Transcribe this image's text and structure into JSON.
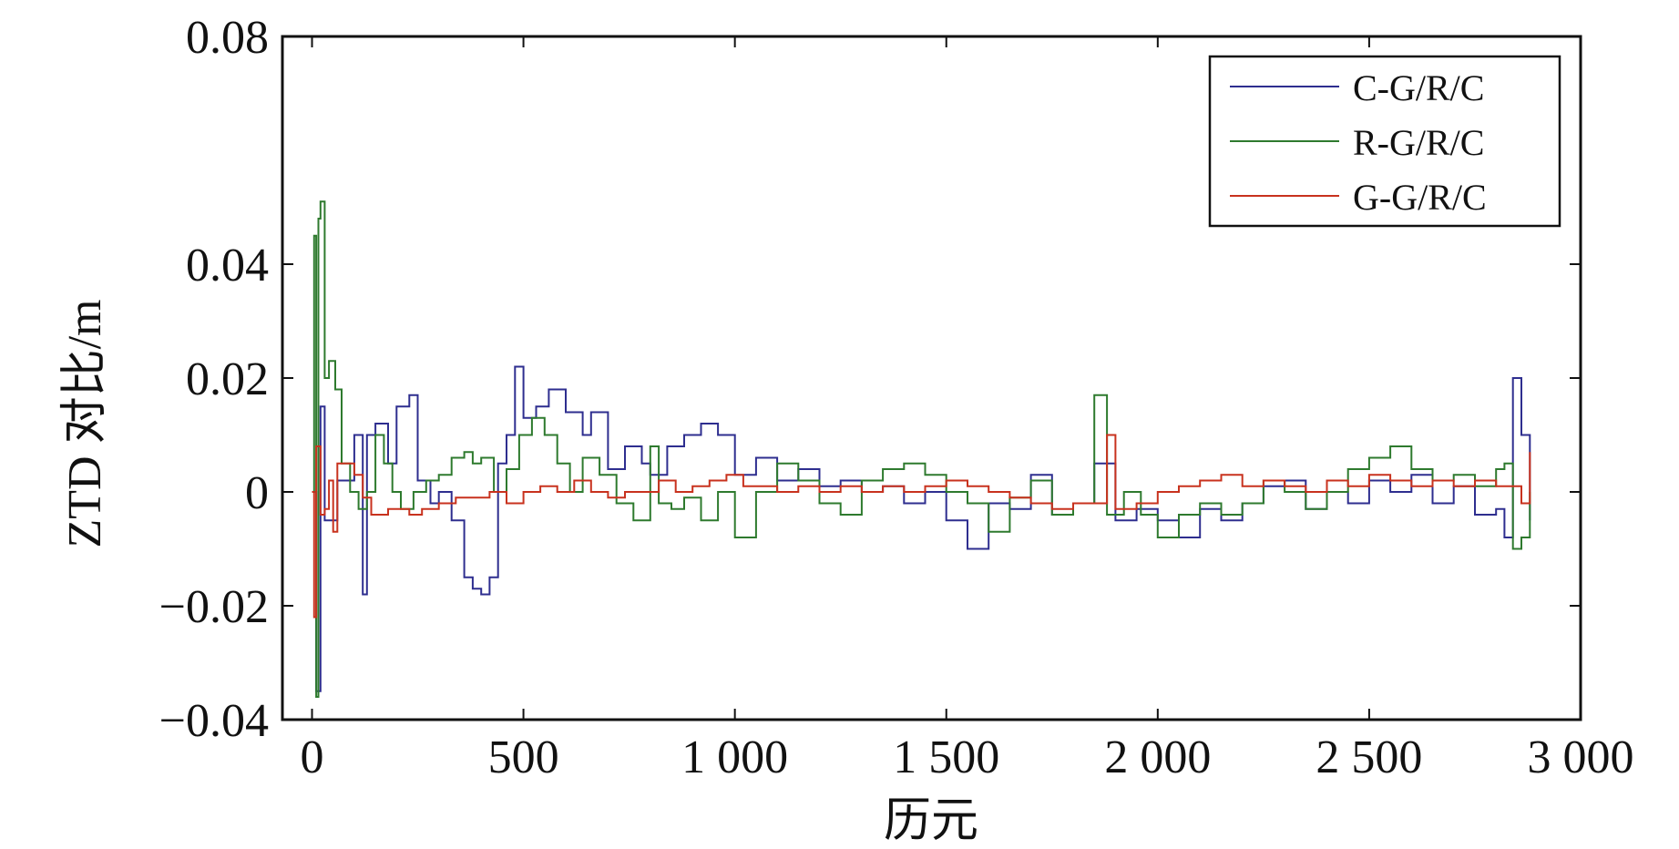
{
  "chart_data": {
    "type": "line",
    "xlabel": "历元",
    "ylabel": "ZTD 对比/m",
    "xlim": [
      -70,
      3000
    ],
    "ylim": [
      -0.04,
      0.08
    ],
    "xticks": [
      0,
      500,
      1000,
      1500,
      2000,
      2500,
      3000
    ],
    "xtick_labels": [
      "0",
      "500",
      "1 000",
      "1 500",
      "2 000",
      "2 500",
      "3 000"
    ],
    "yticks": [
      -0.04,
      -0.02,
      0,
      0.02,
      0.04,
      0.08
    ],
    "ytick_labels": [
      "−0.04",
      "−0.02",
      "0",
      "0.02",
      "0.04",
      "0.08"
    ],
    "grid": false,
    "legend_position": "top-right",
    "series": [
      {
        "name": "C-G/R/C",
        "color": "#2e2e8f",
        "x": [
          0,
          10,
          20,
          30,
          60,
          100,
          120,
          130,
          150,
          180,
          200,
          230,
          250,
          280,
          300,
          330,
          360,
          380,
          400,
          420,
          440,
          460,
          480,
          500,
          530,
          560,
          600,
          640,
          660,
          700,
          740,
          780,
          800,
          840,
          880,
          920,
          960,
          1000,
          1050,
          1100,
          1150,
          1200,
          1250,
          1300,
          1350,
          1400,
          1450,
          1500,
          1550,
          1600,
          1650,
          1700,
          1750,
          1800,
          1850,
          1900,
          1950,
          2000,
          2050,
          2100,
          2150,
          2200,
          2250,
          2300,
          2350,
          2400,
          2450,
          2500,
          2550,
          2600,
          2650,
          2700,
          2750,
          2800,
          2820,
          2840,
          2860,
          2880
        ],
        "y": [
          0.0,
          -0.035,
          0.015,
          -0.005,
          0.002,
          0.01,
          -0.018,
          0.01,
          0.012,
          0.005,
          0.015,
          0.017,
          0.002,
          -0.002,
          0.0,
          -0.005,
          -0.015,
          -0.017,
          -0.018,
          -0.015,
          0.005,
          0.01,
          0.022,
          0.013,
          0.015,
          0.018,
          0.014,
          0.01,
          0.014,
          0.004,
          0.008,
          0.005,
          0.003,
          0.008,
          0.01,
          0.012,
          0.01,
          0.003,
          0.006,
          0.002,
          0.004,
          0.001,
          0.002,
          0.0,
          0.001,
          -0.002,
          0.0,
          -0.005,
          -0.01,
          -0.002,
          -0.003,
          0.003,
          -0.004,
          -0.002,
          0.005,
          -0.005,
          -0.003,
          -0.005,
          -0.008,
          -0.003,
          -0.005,
          -0.002,
          0.001,
          0.002,
          -0.003,
          0.0,
          -0.002,
          0.002,
          0.0,
          0.003,
          -0.002,
          0.001,
          -0.004,
          -0.003,
          -0.008,
          0.02,
          0.01,
          -0.005
        ]
      },
      {
        "name": "R-G/R/C",
        "color": "#2e7a2e",
        "x": [
          0,
          5,
          10,
          15,
          20,
          30,
          40,
          55,
          70,
          90,
          110,
          130,
          150,
          170,
          190,
          210,
          240,
          270,
          300,
          330,
          360,
          380,
          400,
          430,
          460,
          490,
          520,
          550,
          580,
          610,
          640,
          680,
          720,
          760,
          800,
          820,
          850,
          880,
          920,
          960,
          1000,
          1050,
          1100,
          1150,
          1200,
          1250,
          1300,
          1350,
          1400,
          1450,
          1500,
          1550,
          1600,
          1650,
          1700,
          1750,
          1800,
          1850,
          1880,
          1920,
          1960,
          2000,
          2050,
          2100,
          2150,
          2200,
          2250,
          2300,
          2350,
          2400,
          2450,
          2500,
          2550,
          2600,
          2650,
          2700,
          2750,
          2800,
          2820,
          2840,
          2860,
          2880
        ],
        "y": [
          0.0,
          0.045,
          -0.036,
          0.048,
          0.051,
          0.02,
          0.023,
          0.018,
          0.005,
          0.0,
          -0.003,
          0.0,
          0.01,
          0.005,
          0.0,
          -0.003,
          0.0,
          0.002,
          0.003,
          0.006,
          0.007,
          0.005,
          0.006,
          0.0,
          0.004,
          0.01,
          0.013,
          0.01,
          0.005,
          0.0,
          0.006,
          0.003,
          -0.002,
          -0.005,
          0.008,
          -0.002,
          -0.003,
          -0.001,
          -0.005,
          0.0,
          -0.008,
          0.0,
          0.005,
          0.002,
          -0.002,
          -0.004,
          0.002,
          0.004,
          0.005,
          0.003,
          0.0,
          -0.002,
          -0.007,
          -0.001,
          0.002,
          -0.004,
          -0.002,
          0.017,
          -0.004,
          0.0,
          -0.004,
          -0.008,
          -0.004,
          -0.002,
          -0.004,
          -0.002,
          0.002,
          0.0,
          -0.003,
          0.0,
          0.004,
          0.006,
          0.008,
          0.004,
          0.002,
          0.003,
          0.001,
          0.004,
          0.005,
          -0.01,
          -0.008,
          0.0
        ]
      },
      {
        "name": "G-G/R/C",
        "color": "#c8321e",
        "x": [
          0,
          5,
          10,
          20,
          30,
          40,
          50,
          60,
          80,
          100,
          120,
          140,
          160,
          180,
          200,
          230,
          260,
          300,
          340,
          380,
          420,
          460,
          500,
          540,
          580,
          620,
          660,
          700,
          740,
          780,
          820,
          860,
          900,
          940,
          980,
          1020,
          1060,
          1100,
          1150,
          1200,
          1250,
          1300,
          1350,
          1400,
          1450,
          1500,
          1550,
          1600,
          1650,
          1700,
          1750,
          1800,
          1850,
          1880,
          1900,
          1950,
          2000,
          2050,
          2100,
          2150,
          2200,
          2250,
          2300,
          2350,
          2400,
          2450,
          2500,
          2550,
          2600,
          2650,
          2700,
          2750,
          2800,
          2830,
          2860,
          2880
        ],
        "y": [
          0.0,
          -0.022,
          0.008,
          -0.004,
          -0.003,
          0.002,
          -0.007,
          0.005,
          0.005,
          0.003,
          -0.001,
          -0.004,
          -0.004,
          -0.003,
          -0.003,
          -0.004,
          -0.003,
          -0.002,
          -0.001,
          -0.001,
          0.0,
          -0.002,
          0.0,
          0.001,
          0.0,
          0.002,
          0.0,
          -0.001,
          0.0,
          0.0,
          0.002,
          0.0,
          0.001,
          0.002,
          0.003,
          0.001,
          0.001,
          0.0,
          0.001,
          0.0,
          0.001,
          0.0,
          0.001,
          0.0,
          0.001,
          0.002,
          0.001,
          0.0,
          -0.001,
          -0.002,
          -0.003,
          -0.002,
          -0.002,
          0.01,
          -0.003,
          -0.002,
          0.0,
          0.001,
          0.002,
          0.003,
          0.001,
          0.002,
          0.001,
          0.0,
          0.002,
          0.001,
          0.003,
          0.002,
          0.001,
          0.002,
          0.001,
          0.002,
          0.001,
          0.001,
          -0.002,
          0.007
        ]
      }
    ]
  }
}
